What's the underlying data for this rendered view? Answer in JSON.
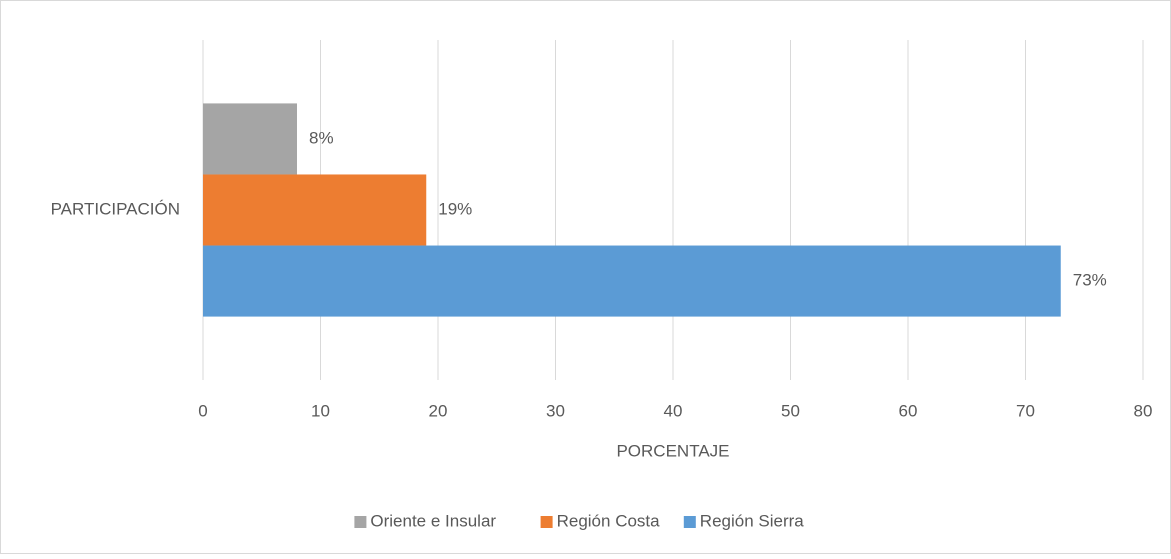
{
  "chart_data": {
    "type": "hbar",
    "xlabel": "PORCENTAJE",
    "categories": [
      "PARTICIPACIÓN"
    ],
    "series": [
      {
        "name": "Oriente e Insular",
        "color": "#a5a5a5",
        "values": [
          8
        ],
        "value_labels": [
          "8%"
        ]
      },
      {
        "name": "Región Costa",
        "color": "#ed7d31",
        "values": [
          19
        ],
        "value_labels": [
          "19%"
        ]
      },
      {
        "name": "Región Sierra",
        "color": "#5b9bd5",
        "values": [
          73
        ],
        "value_labels": [
          "73%"
        ]
      }
    ],
    "xlim": [
      0,
      80
    ],
    "xticks": [
      0,
      10,
      20,
      30,
      40,
      50,
      60,
      70,
      80
    ],
    "grid": true,
    "legend": "bottom"
  }
}
